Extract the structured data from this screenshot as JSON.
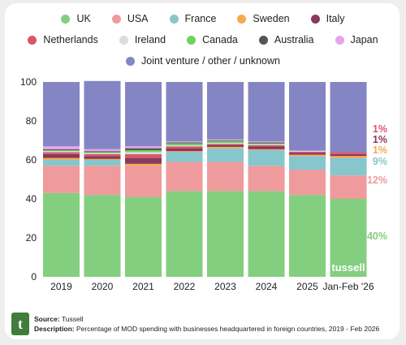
{
  "chart_data": {
    "type": "bar",
    "stacked": true,
    "categories": [
      "2019",
      "2020",
      "2021",
      "2022",
      "2023",
      "2024",
      "2025",
      "Jan-Feb '26"
    ],
    "ylim": [
      0,
      100
    ],
    "yticks": [
      0,
      20,
      40,
      60,
      80,
      100
    ],
    "legend_position": "top",
    "grid": false,
    "series": [
      {
        "name": "UK",
        "color": "#83cf7f",
        "values": [
          43,
          42,
          41,
          44,
          44,
          44,
          42,
          40
        ]
      },
      {
        "name": "USA",
        "color": "#ef9a9c",
        "values": [
          14,
          15,
          16,
          15,
          15,
          13,
          13,
          12
        ]
      },
      {
        "name": "France",
        "color": "#87c6cc",
        "values": [
          3,
          3,
          0,
          5,
          7,
          8,
          7,
          9
        ]
      },
      {
        "name": "Sweden",
        "color": "#f7a94f",
        "values": [
          1,
          0.5,
          1,
          0.5,
          0.7,
          0.5,
          0.7,
          1
        ]
      },
      {
        "name": "Italy",
        "color": "#873a5c",
        "values": [
          2,
          1.5,
          3,
          1.5,
          1,
          1.5,
          1,
          1
        ]
      },
      {
        "name": "Netherlands",
        "color": "#d9566b",
        "values": [
          1,
          1,
          2,
          1,
          0.5,
          0.5,
          0.5,
          1
        ]
      },
      {
        "name": "Ireland",
        "color": "#dcdcdc",
        "values": [
          0.5,
          0.5,
          1,
          0.5,
          0.5,
          0.5,
          0.3,
          0
        ]
      },
      {
        "name": "Canada",
        "color": "#6ed35c",
        "values": [
          0.5,
          0.5,
          1,
          1,
          1,
          0.5,
          0,
          0
        ]
      },
      {
        "name": "Australia",
        "color": "#555555",
        "values": [
          0.5,
          0.5,
          1,
          0.5,
          0.3,
          0.5,
          0,
          0
        ]
      },
      {
        "name": "Japan",
        "color": "#e7a4ee",
        "values": [
          1.5,
          1,
          1,
          0.5,
          0.5,
          0.5,
          0.3,
          0
        ]
      },
      {
        "name": "Joint venture / other / unknown",
        "color": "#8485c4",
        "values": [
          33,
          35,
          33,
          30.5,
          29.5,
          30.5,
          35.2,
          36
        ]
      }
    ],
    "end_labels": [
      {
        "text": "40%",
        "color": "#83cf7f",
        "series": "UK"
      },
      {
        "text": "12%",
        "color": "#ef9a9c",
        "series": "USA"
      },
      {
        "text": "9%",
        "color": "#87c6cc",
        "series": "France"
      },
      {
        "text": "1%",
        "color": "#f7a94f",
        "series": "Sweden"
      },
      {
        "text": "1%",
        "color": "#873a5c",
        "series": "Italy"
      },
      {
        "text": "1%",
        "color": "#d9566b",
        "series": "Netherlands"
      }
    ]
  },
  "legend": {
    "rows": [
      [
        "UK",
        "USA",
        "France",
        "Sweden",
        "Italy"
      ],
      [
        "Netherlands",
        "Ireland",
        "Canada",
        "Australia",
        "Japan"
      ],
      [
        "Joint venture / other / unknown"
      ]
    ]
  },
  "watermark": "tussell",
  "footer": {
    "logo_letter": "t",
    "source_label": "Source:",
    "source_value": "Tussell",
    "description_label": "Description:",
    "description_value": "Percentage of MOD spending with businesses headquartered in foreign countries, 2019 - Feb 2026"
  }
}
